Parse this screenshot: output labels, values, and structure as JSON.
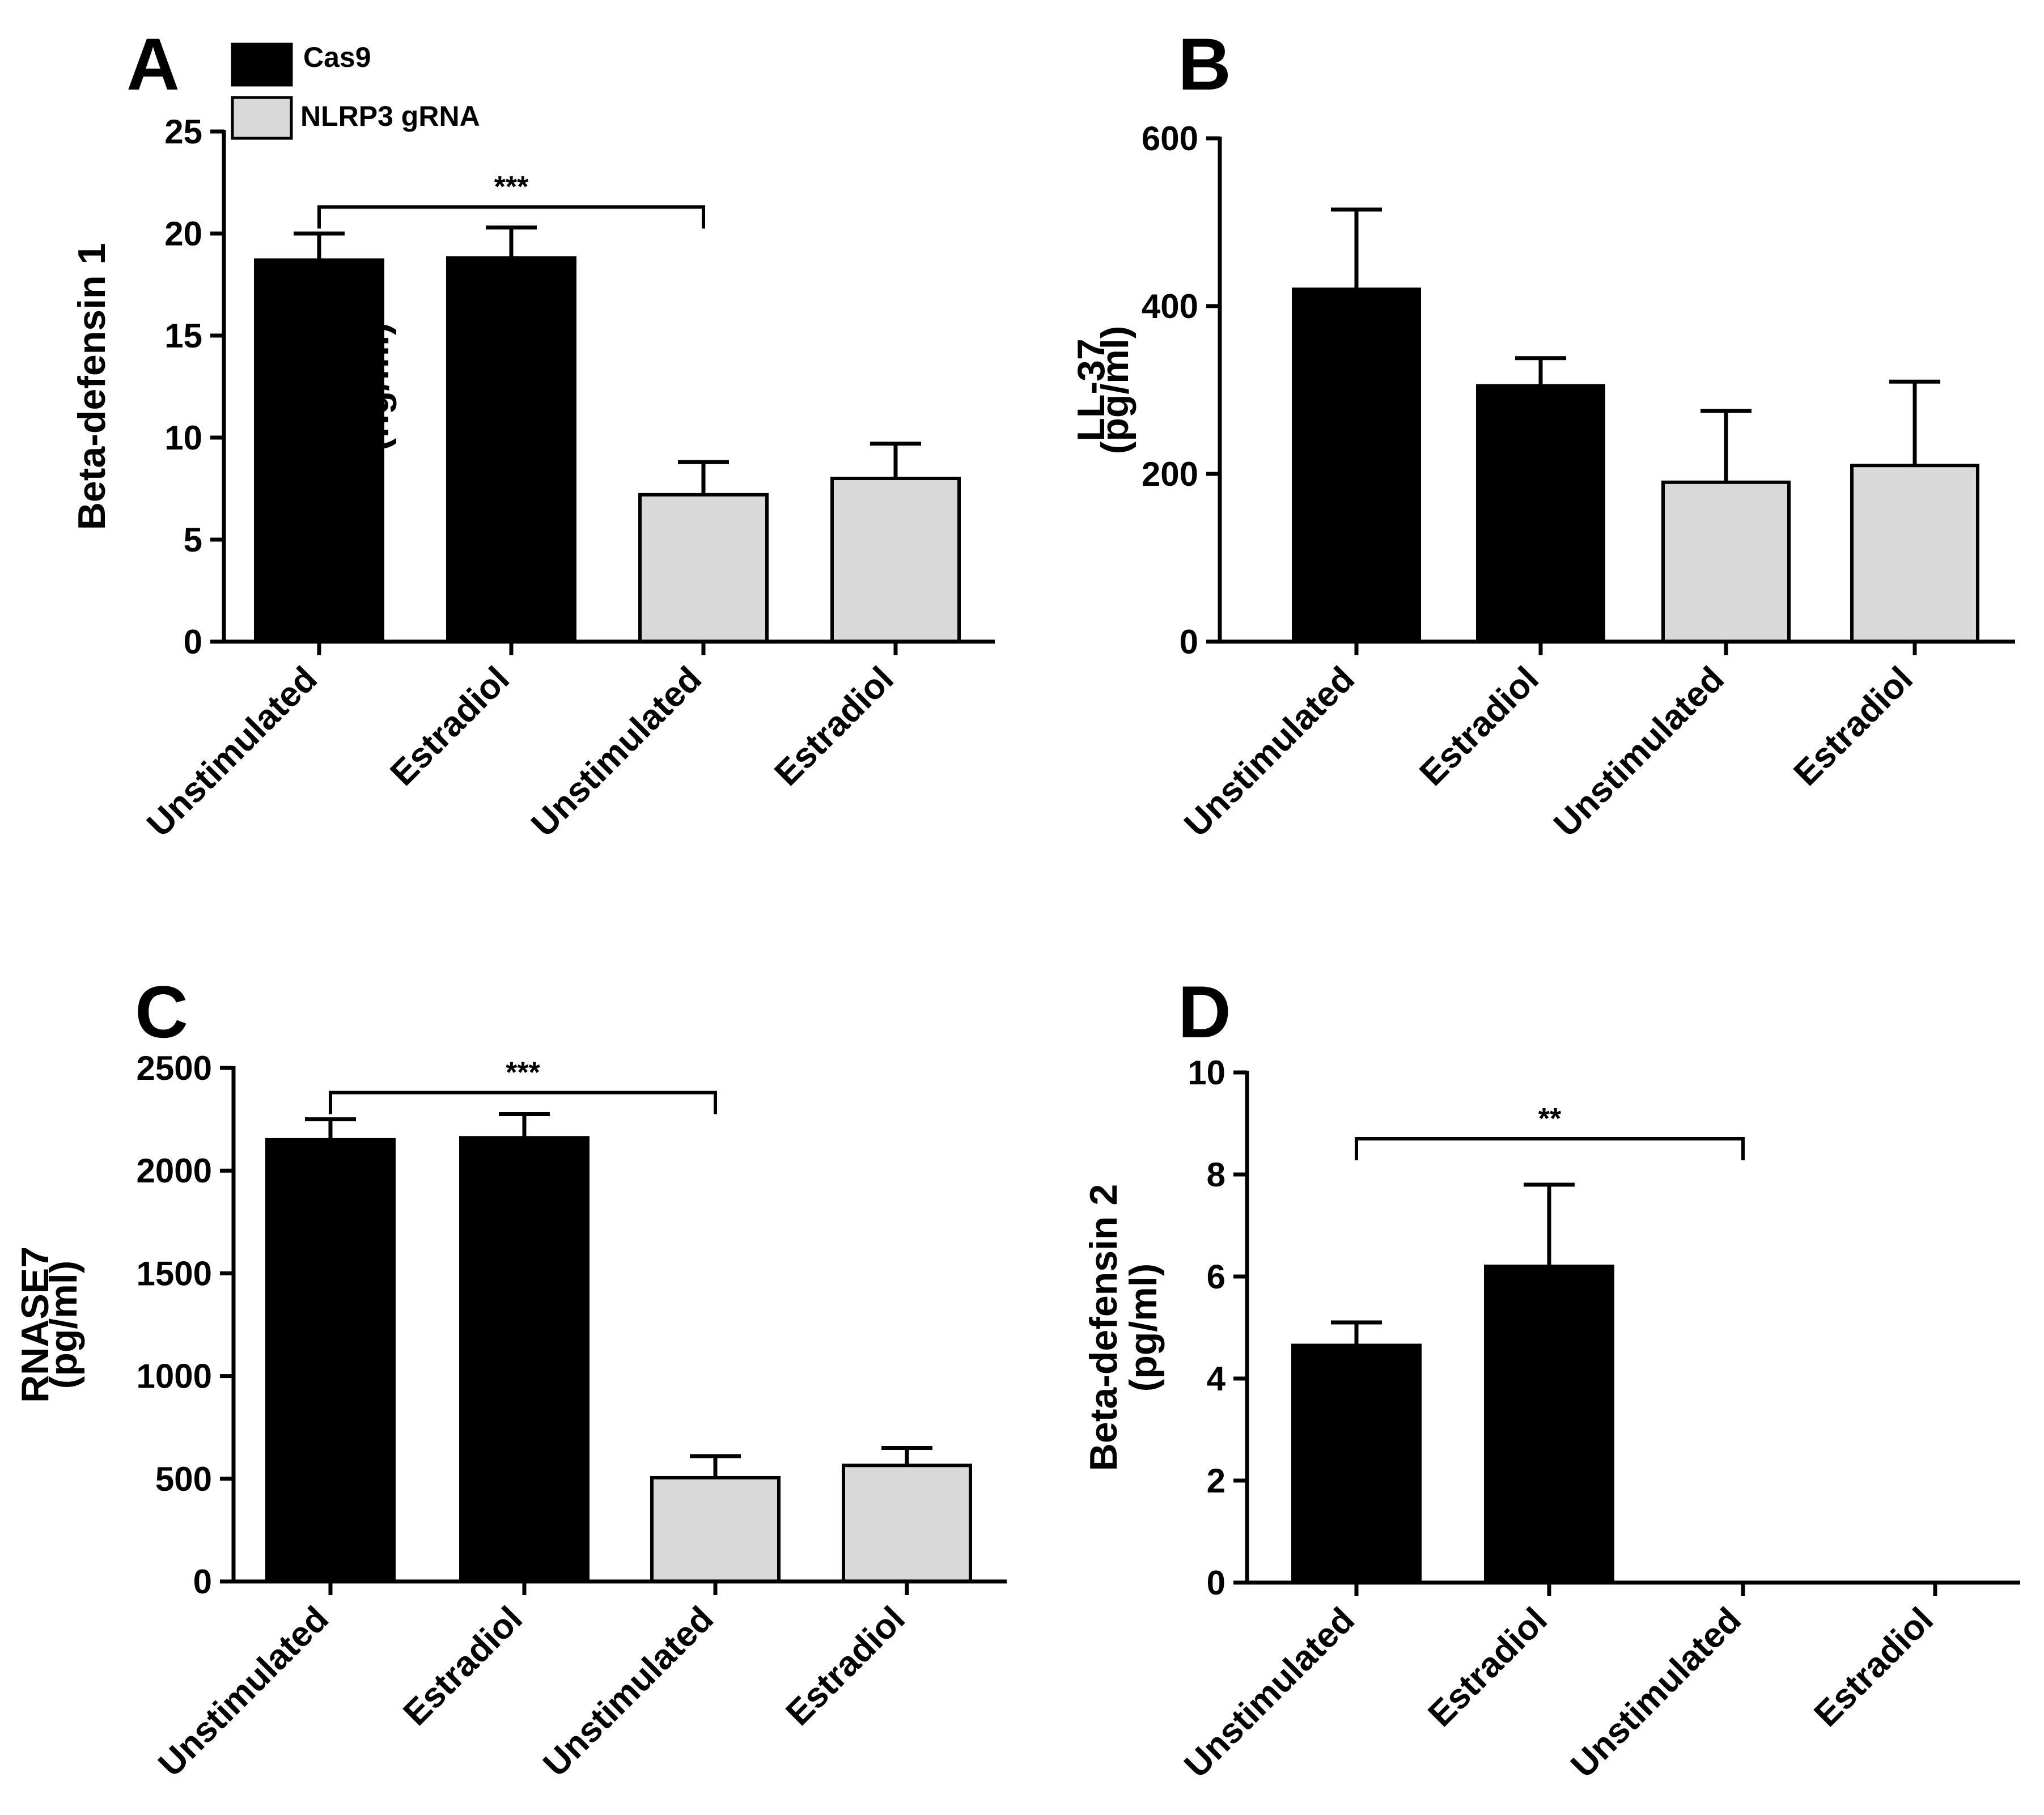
{
  "legend": [
    {
      "label": "Cas9",
      "color": "#000000"
    },
    {
      "label": "NLRP3 gRNA",
      "color": "#d9d9d9"
    }
  ],
  "colors": {
    "cas9": "#000000",
    "nlrp3": "#d9d9d9",
    "axis": "#000000"
  },
  "chart_data": [
    {
      "panel": "A",
      "type": "bar",
      "ylabel_line1": "Beta-defensin 1",
      "ylabel_line2": "(ng/ml)",
      "ylim": [
        0,
        25
      ],
      "yticks": [
        0,
        5,
        10,
        15,
        20,
        25
      ],
      "categories": [
        "Unstimulated",
        "Estradiol",
        "Unstimulated",
        "Estradiol"
      ],
      "groups": [
        "Cas9",
        "Cas9",
        "NLRP3 gRNA",
        "NLRP3 gRNA"
      ],
      "values": [
        18.7,
        18.8,
        7.2,
        8.0
      ],
      "errors": [
        1.3,
        1.5,
        1.6,
        1.7
      ],
      "significance": [
        {
          "from": 0,
          "to": 2,
          "label": "***",
          "y": 21.3
        }
      ]
    },
    {
      "panel": "B",
      "type": "bar",
      "ylabel_line1": "LL-37",
      "ylabel_line2": "(pg/ml)",
      "ylim": [
        0,
        600
      ],
      "yticks": [
        0,
        200,
        400,
        600
      ],
      "categories": [
        "Unstimulated",
        "Estradiol",
        "Unstimulated",
        "Estradiol"
      ],
      "groups": [
        "Cas9",
        "Cas9",
        "NLRP3 gRNA",
        "NLRP3 gRNA"
      ],
      "values": [
        420,
        305,
        190,
        210
      ],
      "errors": [
        95,
        33,
        85,
        100
      ],
      "significance": []
    },
    {
      "panel": "C",
      "type": "bar",
      "ylabel_line1": "RNASE7",
      "ylabel_line2": "(pg/ml)",
      "ylim": [
        0,
        2500
      ],
      "yticks": [
        0,
        500,
        1000,
        1500,
        2000,
        2500
      ],
      "categories": [
        "Unstimulated",
        "Estradiol",
        "Unstimulated",
        "Estradiol"
      ],
      "groups": [
        "Cas9",
        "Cas9",
        "NLRP3 gRNA",
        "NLRP3 gRNA"
      ],
      "values": [
        2150,
        2160,
        505,
        565
      ],
      "errors": [
        100,
        115,
        105,
        85
      ],
      "significance": [
        {
          "from": 0,
          "to": 2,
          "label": "***",
          "y": 2380
        }
      ]
    },
    {
      "panel": "D",
      "type": "bar",
      "ylabel_line1": "Beta-defensin 2",
      "ylabel_line2": "(pg/ml)",
      "ylim": [
        0,
        10
      ],
      "yticks": [
        0,
        2,
        4,
        6,
        8,
        10
      ],
      "categories": [
        "Unstimulated",
        "Estradiol",
        "Unstimulated",
        "Estradiol"
      ],
      "groups": [
        "Cas9",
        "Cas9",
        "NLRP3 gRNA",
        "NLRP3 gRNA"
      ],
      "values": [
        4.65,
        6.2,
        0,
        0
      ],
      "errors": [
        0.45,
        1.6,
        0,
        0
      ],
      "significance": [
        {
          "from": 0,
          "to": 2,
          "label": "**",
          "y": 8.7
        }
      ]
    }
  ]
}
